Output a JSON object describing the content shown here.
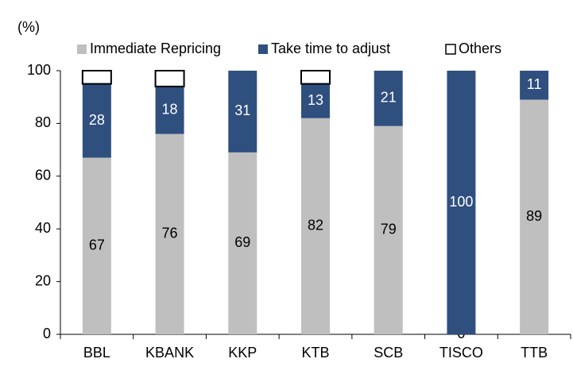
{
  "chart_data": {
    "type": "stacked_bar",
    "y_label": "(%)",
    "categories": [
      "BBL",
      "KBANK",
      "KKP",
      "KTB",
      "SCB",
      "TISCO",
      "TTB"
    ],
    "series": [
      {
        "name": "Immediate Repricing",
        "color": "#bfbfbf",
        "values": [
          67,
          76,
          69,
          82,
          79,
          0,
          89
        ]
      },
      {
        "name": "Take time to adjust",
        "color": "#2f4f7f",
        "values": [
          28,
          18,
          31,
          13,
          21,
          100,
          11
        ]
      },
      {
        "name": "Others",
        "color": "#ffffff",
        "values": [
          5,
          6,
          0,
          5,
          0,
          0,
          0
        ]
      }
    ],
    "data_labels": [
      true,
      true,
      false
    ],
    "ylim": [
      0,
      100
    ],
    "yticks": [
      0,
      20,
      40,
      60,
      80,
      100
    ],
    "legend": "top"
  }
}
